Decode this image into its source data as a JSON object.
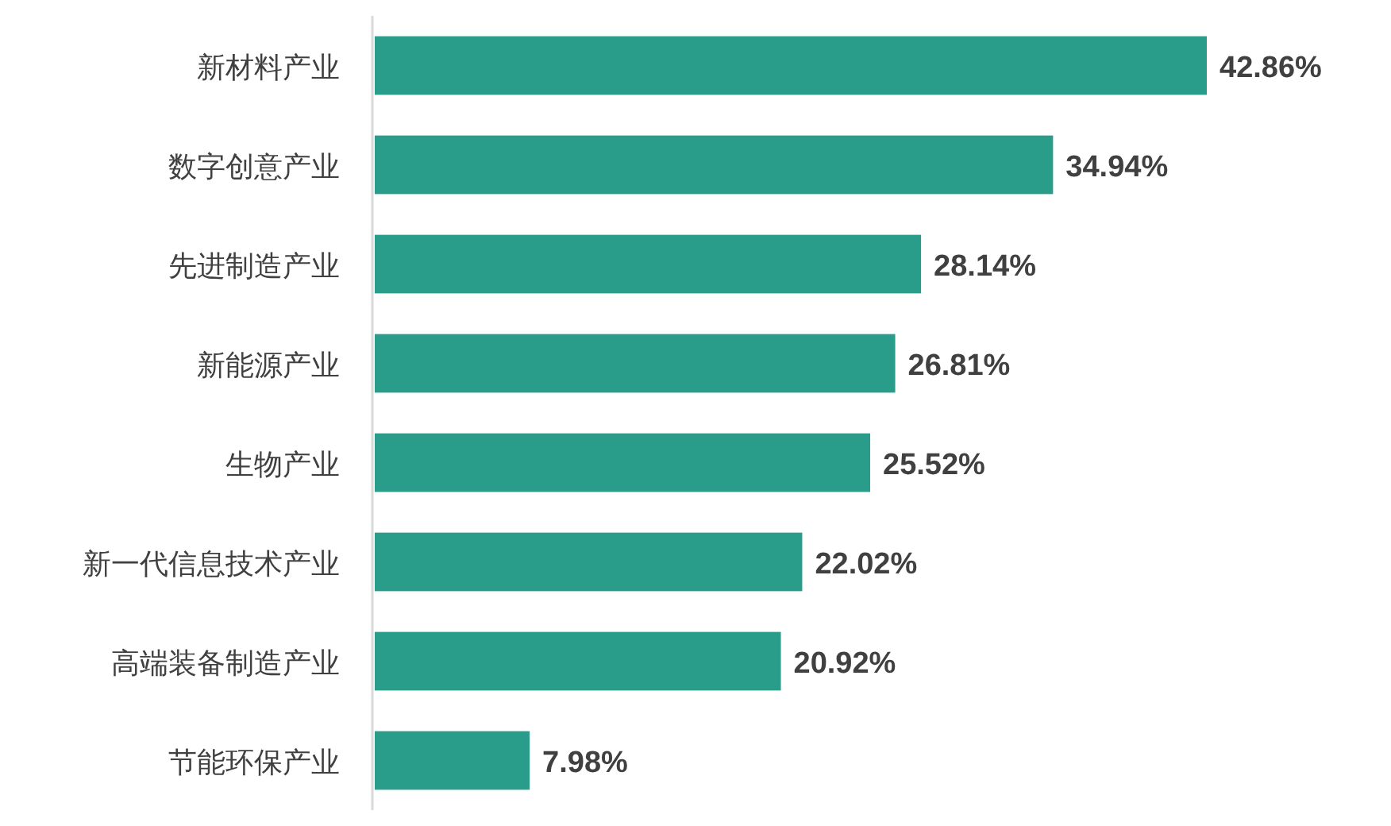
{
  "chart_data": {
    "type": "bar",
    "orientation": "horizontal",
    "categories": [
      "新材料产业",
      "数字创意产业",
      "先进制造产业",
      "新能源产业",
      "生物产业",
      "新一代信息技术产业",
      "高端装备制造产业",
      "节能环保产业"
    ],
    "values": [
      42.86,
      34.94,
      28.14,
      26.81,
      25.52,
      22.02,
      20.92,
      7.98
    ],
    "value_labels": [
      "42.86%",
      "34.94%",
      "28.14%",
      "26.81%",
      "25.52%",
      "22.02%",
      "20.92%",
      "7.98%"
    ],
    "color": "#2a9d8a"
  }
}
